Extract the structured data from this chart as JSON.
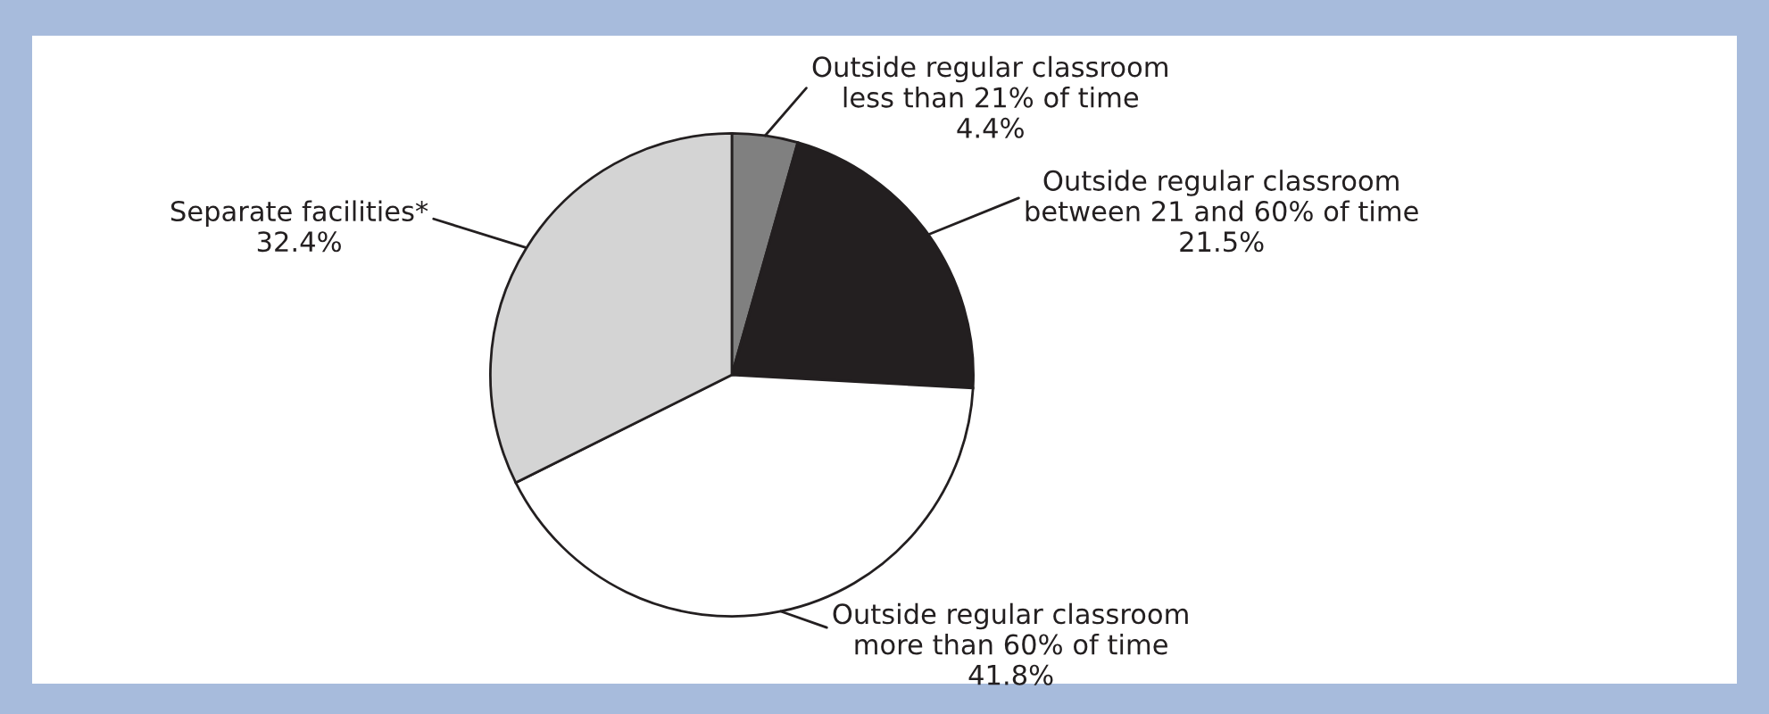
{
  "chart_data": {
    "type": "pie",
    "categories": [
      "Outside regular classroom\nless than 21% of time",
      "Outside regular classroom\nbetween 21 and 60% of time",
      "Outside regular classroom\nmore than 60% of time",
      "Separate facilities*"
    ],
    "values": [
      4.4,
      21.5,
      41.8,
      32.4
    ],
    "colors": [
      "#808080",
      "#231f20",
      "#ffffff",
      "#d4d4d4"
    ],
    "value_labels": [
      "4.4%",
      "21.5%",
      "41.8%",
      "32.4%"
    ],
    "legend": false
  }
}
